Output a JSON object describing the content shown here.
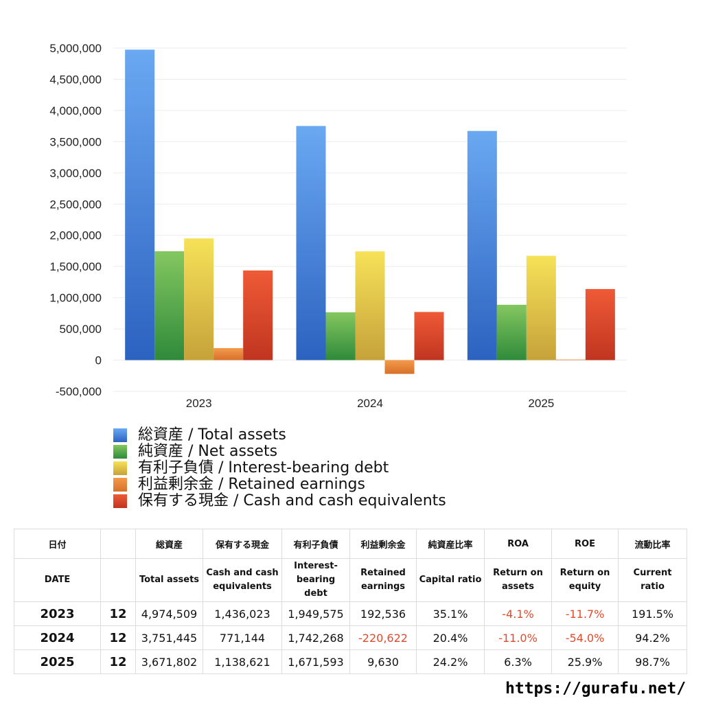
{
  "chart_data": {
    "type": "bar",
    "categories": [
      "2023",
      "2024",
      "2025"
    ],
    "ylim": [
      -500000,
      5000000
    ],
    "yticks": [
      "5,000,000",
      "4,500,000",
      "4,000,000",
      "3,500,000",
      "3,000,000",
      "2,500,000",
      "2,000,000",
      "1,500,000",
      "1,000,000",
      "500,000",
      "0",
      "-500,000"
    ],
    "ytick_values": [
      5000000,
      4500000,
      4000000,
      3500000,
      3000000,
      2500000,
      2000000,
      1500000,
      1000000,
      500000,
      0,
      -500000
    ],
    "grid": true,
    "legend_position": "bottom",
    "series": [
      {
        "name": "総資産 / Total assets",
        "values": [
          4974509,
          3751445,
          3671802
        ],
        "colors": [
          "#6aa8f2",
          "#2c62c0"
        ]
      },
      {
        "name": "純資産 / Net assets",
        "values": [
          1745000,
          766000,
          887000
        ],
        "colors": [
          "#84c760",
          "#2f8a3a"
        ]
      },
      {
        "name": "有利子負債 / Interest-bearing debt",
        "values": [
          1949575,
          1742268,
          1671593
        ],
        "colors": [
          "#f6e258",
          "#c6a23a"
        ]
      },
      {
        "name": "利益剰余金 / Retained earnings",
        "values": [
          192536,
          -220622,
          9630
        ],
        "colors": [
          "#f49a4a",
          "#d7702a"
        ]
      },
      {
        "name": "保有する現金 /  Cash and cash equivalents",
        "values": [
          1436023,
          771144,
          1138621
        ],
        "colors": [
          "#ef5a36",
          "#c03520"
        ]
      }
    ]
  },
  "table": {
    "header_ja": [
      "日付",
      "",
      "総資産",
      "保有する現金",
      "有利子負債",
      "利益剰余金",
      "純資産比率",
      "ROA",
      "ROE",
      "流動比率"
    ],
    "header_en": [
      [
        "DATE"
      ],
      [
        ""
      ],
      [
        "Total assets"
      ],
      [
        "Cash and cash",
        "equivalents"
      ],
      [
        "Interest-",
        "bearing",
        "debt"
      ],
      [
        "Retained",
        "earnings"
      ],
      [
        "Capital ratio"
      ],
      [
        "Return on",
        "assets"
      ],
      [
        "Return on",
        "equity"
      ],
      [
        "Current",
        "ratio"
      ]
    ],
    "rows": [
      [
        "2023",
        "12",
        "4,974,509",
        "1,436,023",
        "1,949,575",
        "192,536",
        "35.1%",
        "-4.1%",
        "-11.7%",
        "191.5%"
      ],
      [
        "2024",
        "12",
        "3,751,445",
        "771,144",
        "1,742,268",
        "-220,622",
        "20.4%",
        "-11.0%",
        "-54.0%",
        "94.2%"
      ],
      [
        "2025",
        "12",
        "3,671,802",
        "1,138,621",
        "1,671,593",
        "9,630",
        "24.2%",
        "6.3%",
        "25.9%",
        "98.7%"
      ]
    ],
    "negative_color": "#e04a2a"
  },
  "footer_url": "https://gurafu.net/"
}
